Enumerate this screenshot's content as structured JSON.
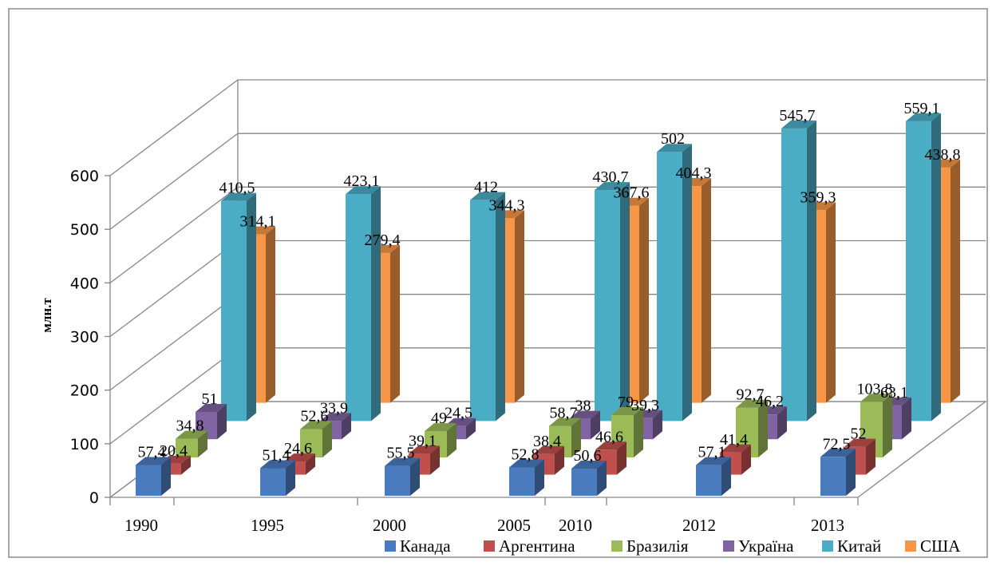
{
  "chart_data": {
    "type": "bar",
    "subtype": "3d-clustered-column",
    "title": "",
    "xlabel": "",
    "ylabel": "млн.т",
    "ylim": [
      0,
      600
    ],
    "yticks": [
      "0",
      "100",
      "200",
      "300",
      "400",
      "500",
      "600"
    ],
    "grid": true,
    "legend_position": "bottom-right",
    "categories": [
      "1990",
      "1995",
      "2000",
      "2005",
      "2010",
      "2012",
      "2013"
    ],
    "series": [
      {
        "name": "Канада",
        "color": "#4a7bbf",
        "values": [
          57.4,
          51.4,
          55.5,
          52.8,
          50.6,
          57.1,
          72.5
        ],
        "labels": [
          "57,4",
          "51,4",
          "55,5",
          "52,8",
          "50,6",
          "57,1",
          "72,5"
        ]
      },
      {
        "name": "Аргентина",
        "color": "#c0504d",
        "values": [
          20.4,
          24.6,
          39.1,
          38.4,
          46.6,
          41.4,
          52
        ],
        "labels": [
          "20,4",
          "24,6",
          "39,1",
          "38,4",
          "46,6",
          "41,4",
          "52"
        ]
      },
      {
        "name": "Бразилія",
        "color": "#9bbb59",
        "values": [
          34.8,
          52.6,
          49,
          58.7,
          79,
          92.7,
          103.8
        ],
        "labels": [
          "34,8",
          "52,6",
          "49",
          "58,7",
          "79",
          "92,7",
          "103,8"
        ]
      },
      {
        "name": "Україна",
        "color": "#8064a2",
        "values": [
          51,
          33.9,
          24.5,
          38,
          39.3,
          46.2,
          63.1
        ],
        "labels": [
          "51",
          "33,9",
          "24,5",
          "38",
          "39,3",
          "46,2",
          "63,1"
        ]
      },
      {
        "name": "Китай",
        "color": "#4bacc6",
        "values": [
          410.5,
          423.1,
          412,
          430.7,
          502,
          545.7,
          559.1
        ],
        "labels": [
          "410,5",
          "423,1",
          "412",
          "430,7",
          "502",
          "545,7",
          "559,1"
        ]
      },
      {
        "name": "США",
        "color": "#f79646",
        "values": [
          314.1,
          279.4,
          344.3,
          367.6,
          404.3,
          359.3,
          438.8
        ],
        "labels": [
          "314,1",
          "279,4",
          "344,3",
          "367,6",
          "404,3",
          "359,3",
          "438,8"
        ]
      }
    ]
  }
}
